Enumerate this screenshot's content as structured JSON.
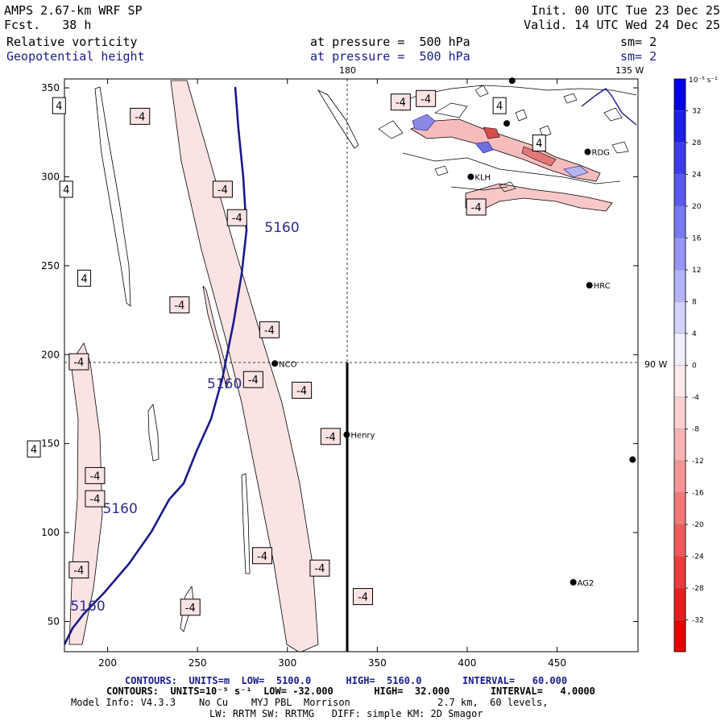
{
  "header": {
    "model": "AMPS 2.67-km WRF SP",
    "forecast": "Fcst.   38 h",
    "init": "Init. 00 UTC Tue 23 Dec 25",
    "valid": "Valid. 14 UTC Wed 24 Dec 25",
    "field1_name": "Relative vorticity",
    "field1_level": "at pressure =  500 hPa",
    "field1_sm": "sm= 2",
    "field2_name": "Geopotential height",
    "field2_level": "at pressure =  500 hPa",
    "field2_sm": "sm= 2"
  },
  "map_labels": {
    "lon_top_180": "180",
    "lon_top_135w": "135 W",
    "lon_right_90w": "90 W",
    "stations": [
      {
        "name": "RDG",
        "x": 467,
        "y": 314
      },
      {
        "name": "KLH",
        "x": 402,
        "y": 300
      },
      {
        "name": "HRC",
        "x": 468,
        "y": 239
      },
      {
        "name": "NCO",
        "x": 293,
        "y": 195
      },
      {
        "name": "Henry",
        "x": 333,
        "y": 155
      },
      {
        "name": "AG2",
        "x": 459,
        "y": 72
      }
    ],
    "extra_station_marks": [
      {
        "x": 425,
        "y": 354
      },
      {
        "x": 422,
        "y": 330
      },
      {
        "x": 492,
        "y": 141
      }
    ]
  },
  "colorbar": {
    "unit_label": "10⁻⁵ s⁻¹",
    "ticks": [
      "32",
      "28",
      "24",
      "20",
      "16",
      "12",
      "8",
      "4",
      "0",
      "-4",
      "-8",
      "-12",
      "-16",
      "-20",
      "-24",
      "-28",
      "-32"
    ],
    "colors": [
      "#0000e6",
      "#1e1ee8",
      "#3c3ceb",
      "#5a5aee",
      "#7878f1",
      "#9696f4",
      "#b4b4f7",
      "#d2d2fa",
      "#f0f0fd",
      "#fdeaea",
      "#fbd0d0",
      "#f8b4b4",
      "#f59696",
      "#f27878",
      "#ef5a5a",
      "#ec3c3c",
      "#e91e1e",
      "#e60000"
    ]
  },
  "footer": {
    "line1_label": "CONTOURS:  UNITS=m  LOW=  5100.0      HIGH=  5160.0       INTERVAL=   60.000",
    "line2_label": "CONTOURS:  UNITS=10⁻⁵ s⁻¹  LOW= -32.000       HIGH=  32.000       INTERVAL=   4.0000",
    "line3": "Model Info: V4.3.3    No Cu    MYJ PBL  Morrison               2.7 km,  60 levels,",
    "line4": "LW: RRTM SW: RRTMG   DIFF: simple KM: 2D Smagor"
  },
  "chart_data": {
    "type": "contour_map",
    "x_ticks": [
      200,
      250,
      300,
      350,
      400,
      450
    ],
    "y_ticks": [
      50,
      100,
      150,
      200,
      250,
      300,
      350
    ],
    "xlim": [
      176,
      495
    ],
    "ylim": [
      33,
      355
    ],
    "height_contour_labels": [
      {
        "text": "5160",
        "x": 297,
        "y": 269
      },
      {
        "text": "5160",
        "x": 265,
        "y": 181
      },
      {
        "text": "5160",
        "x": 207,
        "y": 111
      },
      {
        "text": "5160",
        "x": 189,
        "y": 56
      }
    ],
    "vorticity_labels": [
      {
        "text": "4",
        "x": 173,
        "y": 340
      },
      {
        "text": "4",
        "x": 177,
        "y": 293
      },
      {
        "text": "4",
        "x": 187,
        "y": 243
      },
      {
        "text": "4",
        "x": 159,
        "y": 147
      },
      {
        "text": "4",
        "x": 418,
        "y": 340
      },
      {
        "text": "4",
        "x": 440,
        "y": 319
      },
      {
        "text": "-4",
        "x": 218,
        "y": 334
      },
      {
        "text": "-4",
        "x": 363,
        "y": 342
      },
      {
        "text": "-4",
        "x": 377,
        "y": 344
      },
      {
        "text": "-4",
        "x": 264,
        "y": 293
      },
      {
        "text": "-4",
        "x": 272,
        "y": 277
      },
      {
        "text": "-4",
        "x": 240,
        "y": 228
      },
      {
        "text": "-4",
        "x": 290,
        "y": 214
      },
      {
        "text": "-4",
        "x": 184,
        "y": 196
      },
      {
        "text": "-4",
        "x": 281,
        "y": 186
      },
      {
        "text": "-4",
        "x": 308,
        "y": 180
      },
      {
        "text": "-4",
        "x": 324,
        "y": 154
      },
      {
        "text": "-4",
        "x": 193,
        "y": 132
      },
      {
        "text": "-4",
        "x": 193,
        "y": 119
      },
      {
        "text": "-4",
        "x": 286,
        "y": 87
      },
      {
        "text": "-4",
        "x": 318,
        "y": 80
      },
      {
        "text": "-4",
        "x": 184,
        "y": 79
      },
      {
        "text": "-4",
        "x": 342,
        "y": 64
      },
      {
        "text": "-4",
        "x": 246,
        "y": 58
      },
      {
        "text": "-4",
        "x": 405,
        "y": 283
      }
    ]
  }
}
